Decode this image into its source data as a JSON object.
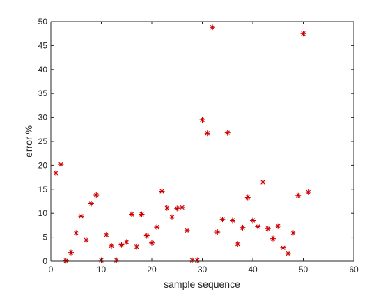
{
  "chart_data": {
    "type": "scatter",
    "title": "",
    "xlabel": "sample sequence",
    "ylabel": "error %",
    "xlim": [
      0,
      60
    ],
    "ylim": [
      0,
      50
    ],
    "xticks": [
      0,
      10,
      20,
      30,
      40,
      50,
      60
    ],
    "yticks": [
      0,
      5,
      10,
      15,
      20,
      25,
      30,
      35,
      40,
      45,
      50
    ],
    "grid": false,
    "marker": "asterisk",
    "marker_color": "#cc0000",
    "series": [
      {
        "x": [
          1,
          2,
          3,
          4,
          5,
          6,
          7,
          8,
          9,
          10,
          11,
          12,
          13,
          14,
          15,
          16,
          17,
          18,
          19,
          20,
          21,
          22,
          23,
          24,
          25,
          26,
          27,
          28,
          29,
          30,
          31,
          32,
          33,
          34,
          35,
          36,
          37,
          38,
          39,
          40,
          41,
          42,
          43,
          44,
          45,
          46,
          47,
          48,
          49,
          50,
          51
        ],
        "y": [
          18.4,
          20.2,
          0.1,
          1.8,
          5.9,
          9.4,
          4.4,
          12.0,
          13.8,
          0.2,
          5.5,
          3.2,
          0.2,
          3.4,
          4.0,
          9.8,
          3.0,
          9.8,
          5.3,
          3.8,
          7.1,
          14.6,
          11.1,
          9.2,
          11.0,
          11.2,
          6.4,
          0.2,
          0.2,
          29.5,
          26.7,
          48.8,
          6.1,
          8.7,
          26.8,
          8.5,
          3.6,
          7.0,
          13.3,
          8.5,
          7.2,
          16.5,
          6.8,
          4.7,
          7.3,
          2.8,
          1.6,
          5.9,
          13.7,
          47.5,
          14.4
        ]
      }
    ]
  }
}
